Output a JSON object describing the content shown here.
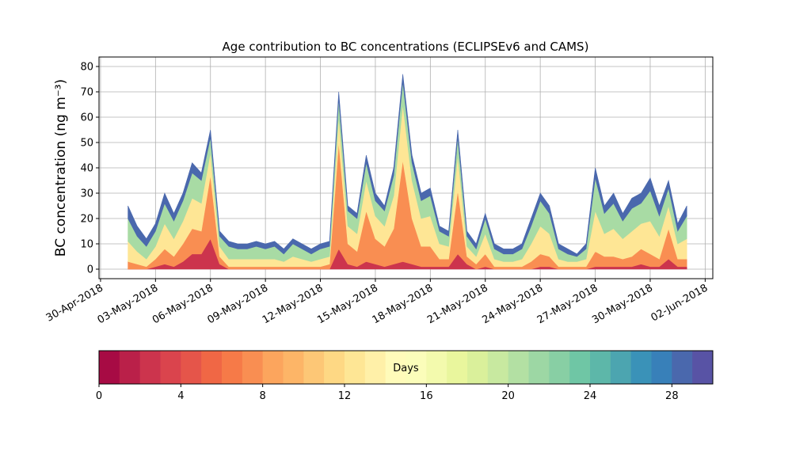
{
  "chart_data": {
    "type": "stacked_area",
    "title": "Age contribution to BC concentrations (ECLIPSEv6 and CAMS)",
    "ylabel": "BC concentration (ng m⁻³)",
    "x": [
      "2018-05-01 12:00",
      "2018-05-02 00:00",
      "2018-05-02 12:00",
      "2018-05-03 00:00",
      "2018-05-03 12:00",
      "2018-05-04 00:00",
      "2018-05-04 12:00",
      "2018-05-05 00:00",
      "2018-05-05 12:00",
      "2018-05-06 00:00",
      "2018-05-06 12:00",
      "2018-05-07 00:00",
      "2018-05-07 12:00",
      "2018-05-08 00:00",
      "2018-05-08 12:00",
      "2018-05-09 00:00",
      "2018-05-09 12:00",
      "2018-05-10 00:00",
      "2018-05-10 12:00",
      "2018-05-11 00:00",
      "2018-05-11 12:00",
      "2018-05-12 00:00",
      "2018-05-12 12:00",
      "2018-05-13 00:00",
      "2018-05-13 12:00",
      "2018-05-14 00:00",
      "2018-05-14 12:00",
      "2018-05-15 00:00",
      "2018-05-15 12:00",
      "2018-05-16 00:00",
      "2018-05-16 12:00",
      "2018-05-17 00:00",
      "2018-05-17 12:00",
      "2018-05-18 00:00",
      "2018-05-18 12:00",
      "2018-05-19 00:00",
      "2018-05-19 12:00",
      "2018-05-20 00:00",
      "2018-05-20 12:00",
      "2018-05-21 00:00",
      "2018-05-21 12:00",
      "2018-05-22 00:00",
      "2018-05-22 12:00",
      "2018-05-23 00:00",
      "2018-05-23 12:00",
      "2018-05-24 00:00",
      "2018-05-24 12:00",
      "2018-05-25 00:00",
      "2018-05-25 12:00",
      "2018-05-26 00:00",
      "2018-05-26 12:00",
      "2018-05-27 00:00",
      "2018-05-27 12:00",
      "2018-05-28 00:00",
      "2018-05-28 12:00",
      "2018-05-29 00:00",
      "2018-05-29 12:00",
      "2018-05-30 00:00",
      "2018-05-30 12:00",
      "2018-05-31 00:00",
      "2018-05-31 12:00",
      "2018-06-01 00:00"
    ],
    "series": [
      {
        "color": "#cc344d",
        "values": [
          0,
          0,
          0,
          1,
          2,
          1,
          3,
          6,
          6,
          12,
          2,
          0,
          0,
          0,
          0,
          0,
          0,
          0,
          0,
          0,
          0,
          0,
          0,
          8,
          2,
          1,
          3,
          2,
          1,
          2,
          3,
          2,
          1,
          1,
          1,
          1,
          6,
          2,
          0,
          1,
          0,
          0,
          0,
          0,
          0,
          1,
          1,
          0,
          0,
          0,
          0,
          1,
          1,
          1,
          1,
          1,
          2,
          1,
          1,
          4,
          1,
          1
        ]
      },
      {
        "color": "#f98e52",
        "values": [
          3,
          2,
          1,
          3,
          6,
          4,
          7,
          10,
          9,
          25,
          3,
          1,
          1,
          1,
          1,
          1,
          1,
          1,
          1,
          1,
          1,
          1,
          2,
          42,
          8,
          6,
          20,
          10,
          8,
          14,
          40,
          18,
          8,
          8,
          3,
          3,
          25,
          3,
          2,
          5,
          1,
          1,
          1,
          1,
          3,
          5,
          4,
          1,
          1,
          1,
          1,
          6,
          4,
          4,
          3,
          4,
          6,
          5,
          3,
          12,
          3,
          3
        ]
      },
      {
        "color": "#fee695",
        "values": [
          8,
          5,
          3,
          5,
          10,
          7,
          9,
          12,
          11,
          9,
          4,
          3,
          3,
          3,
          3,
          3,
          3,
          2,
          4,
          3,
          2,
          3,
          3,
          10,
          7,
          7,
          12,
          9,
          8,
          13,
          22,
          15,
          11,
          12,
          6,
          5,
          14,
          4,
          3,
          8,
          3,
          2,
          2,
          3,
          7,
          11,
          9,
          3,
          2,
          2,
          3,
          16,
          9,
          11,
          8,
          10,
          10,
          13,
          9,
          9,
          6,
          8
        ]
      },
      {
        "color": "#a8dba4",
        "values": [
          9,
          6,
          5,
          6,
          8,
          7,
          8,
          10,
          9,
          6,
          4,
          5,
          4,
          4,
          5,
          4,
          5,
          3,
          5,
          4,
          3,
          4,
          4,
          7,
          6,
          6,
          7,
          6,
          6,
          8,
          9,
          7,
          7,
          8,
          5,
          4,
          7,
          4,
          3,
          6,
          4,
          3,
          3,
          4,
          7,
          10,
          8,
          4,
          3,
          2,
          4,
          13,
          8,
          10,
          7,
          9,
          8,
          12,
          8,
          7,
          5,
          9
        ]
      },
      {
        "color": "#4a68ad",
        "values": [
          5,
          4,
          3,
          3,
          4,
          3,
          3,
          4,
          3,
          3,
          2,
          2,
          2,
          2,
          2,
          2,
          2,
          2,
          2,
          2,
          2,
          2,
          2,
          3,
          2,
          2,
          3,
          3,
          2,
          3,
          3,
          3,
          3,
          3,
          2,
          2,
          3,
          2,
          2,
          2,
          2,
          2,
          2,
          2,
          3,
          3,
          3,
          2,
          2,
          1,
          2,
          4,
          3,
          4,
          3,
          4,
          4,
          5,
          4,
          3,
          3,
          4
        ]
      }
    ],
    "xlim": [
      "2018-04-29 22:00",
      "2018-06-02 10:00"
    ],
    "xticks": [
      {
        "value": "2018-04-30 00:00",
        "label": "30-Apr-2018"
      },
      {
        "value": "2018-05-03 00:00",
        "label": "03-May-2018"
      },
      {
        "value": "2018-05-06 00:00",
        "label": "06-May-2018"
      },
      {
        "value": "2018-05-09 00:00",
        "label": "09-May-2018"
      },
      {
        "value": "2018-05-12 00:00",
        "label": "12-May-2018"
      },
      {
        "value": "2018-05-15 00:00",
        "label": "15-May-2018"
      },
      {
        "value": "2018-05-18 00:00",
        "label": "18-May-2018"
      },
      {
        "value": "2018-05-21 00:00",
        "label": "21-May-2018"
      },
      {
        "value": "2018-05-24 00:00",
        "label": "24-May-2018"
      },
      {
        "value": "2018-05-27 00:00",
        "label": "27-May-2018"
      },
      {
        "value": "2018-05-30 00:00",
        "label": "30-May-2018"
      },
      {
        "value": "2018-06-02 00:00",
        "label": "02-Jun-2018"
      }
    ],
    "ylim": [
      -3.75,
      83.75
    ],
    "yticks": [
      0,
      10,
      20,
      30,
      40,
      50,
      60,
      70,
      80
    ],
    "grid": true,
    "colorbar": {
      "label": "Days",
      "lim": [
        0,
        30
      ],
      "ticks": [
        0,
        4,
        8,
        12,
        16,
        20,
        24,
        28
      ],
      "colors": [
        "#a70b44",
        "#ba2049",
        "#cc344d",
        "#da444d",
        "#e5554a",
        "#f06745",
        "#f67a48",
        "#f98e52",
        "#fca55d",
        "#fdb567",
        "#fdc776",
        "#fed884",
        "#fee695",
        "#fff0a8",
        "#fffbba",
        "#fbfdba",
        "#f3faad",
        "#e9f69d",
        "#daf09b",
        "#c8e9a0",
        "#b3e0a3",
        "#9dd7a4",
        "#88cfa4",
        "#6fc6a5",
        "#5db7a9",
        "#4ca5b0",
        "#3a92b8",
        "#3880b9",
        "#4a68ad",
        "#5853a5"
      ]
    }
  }
}
